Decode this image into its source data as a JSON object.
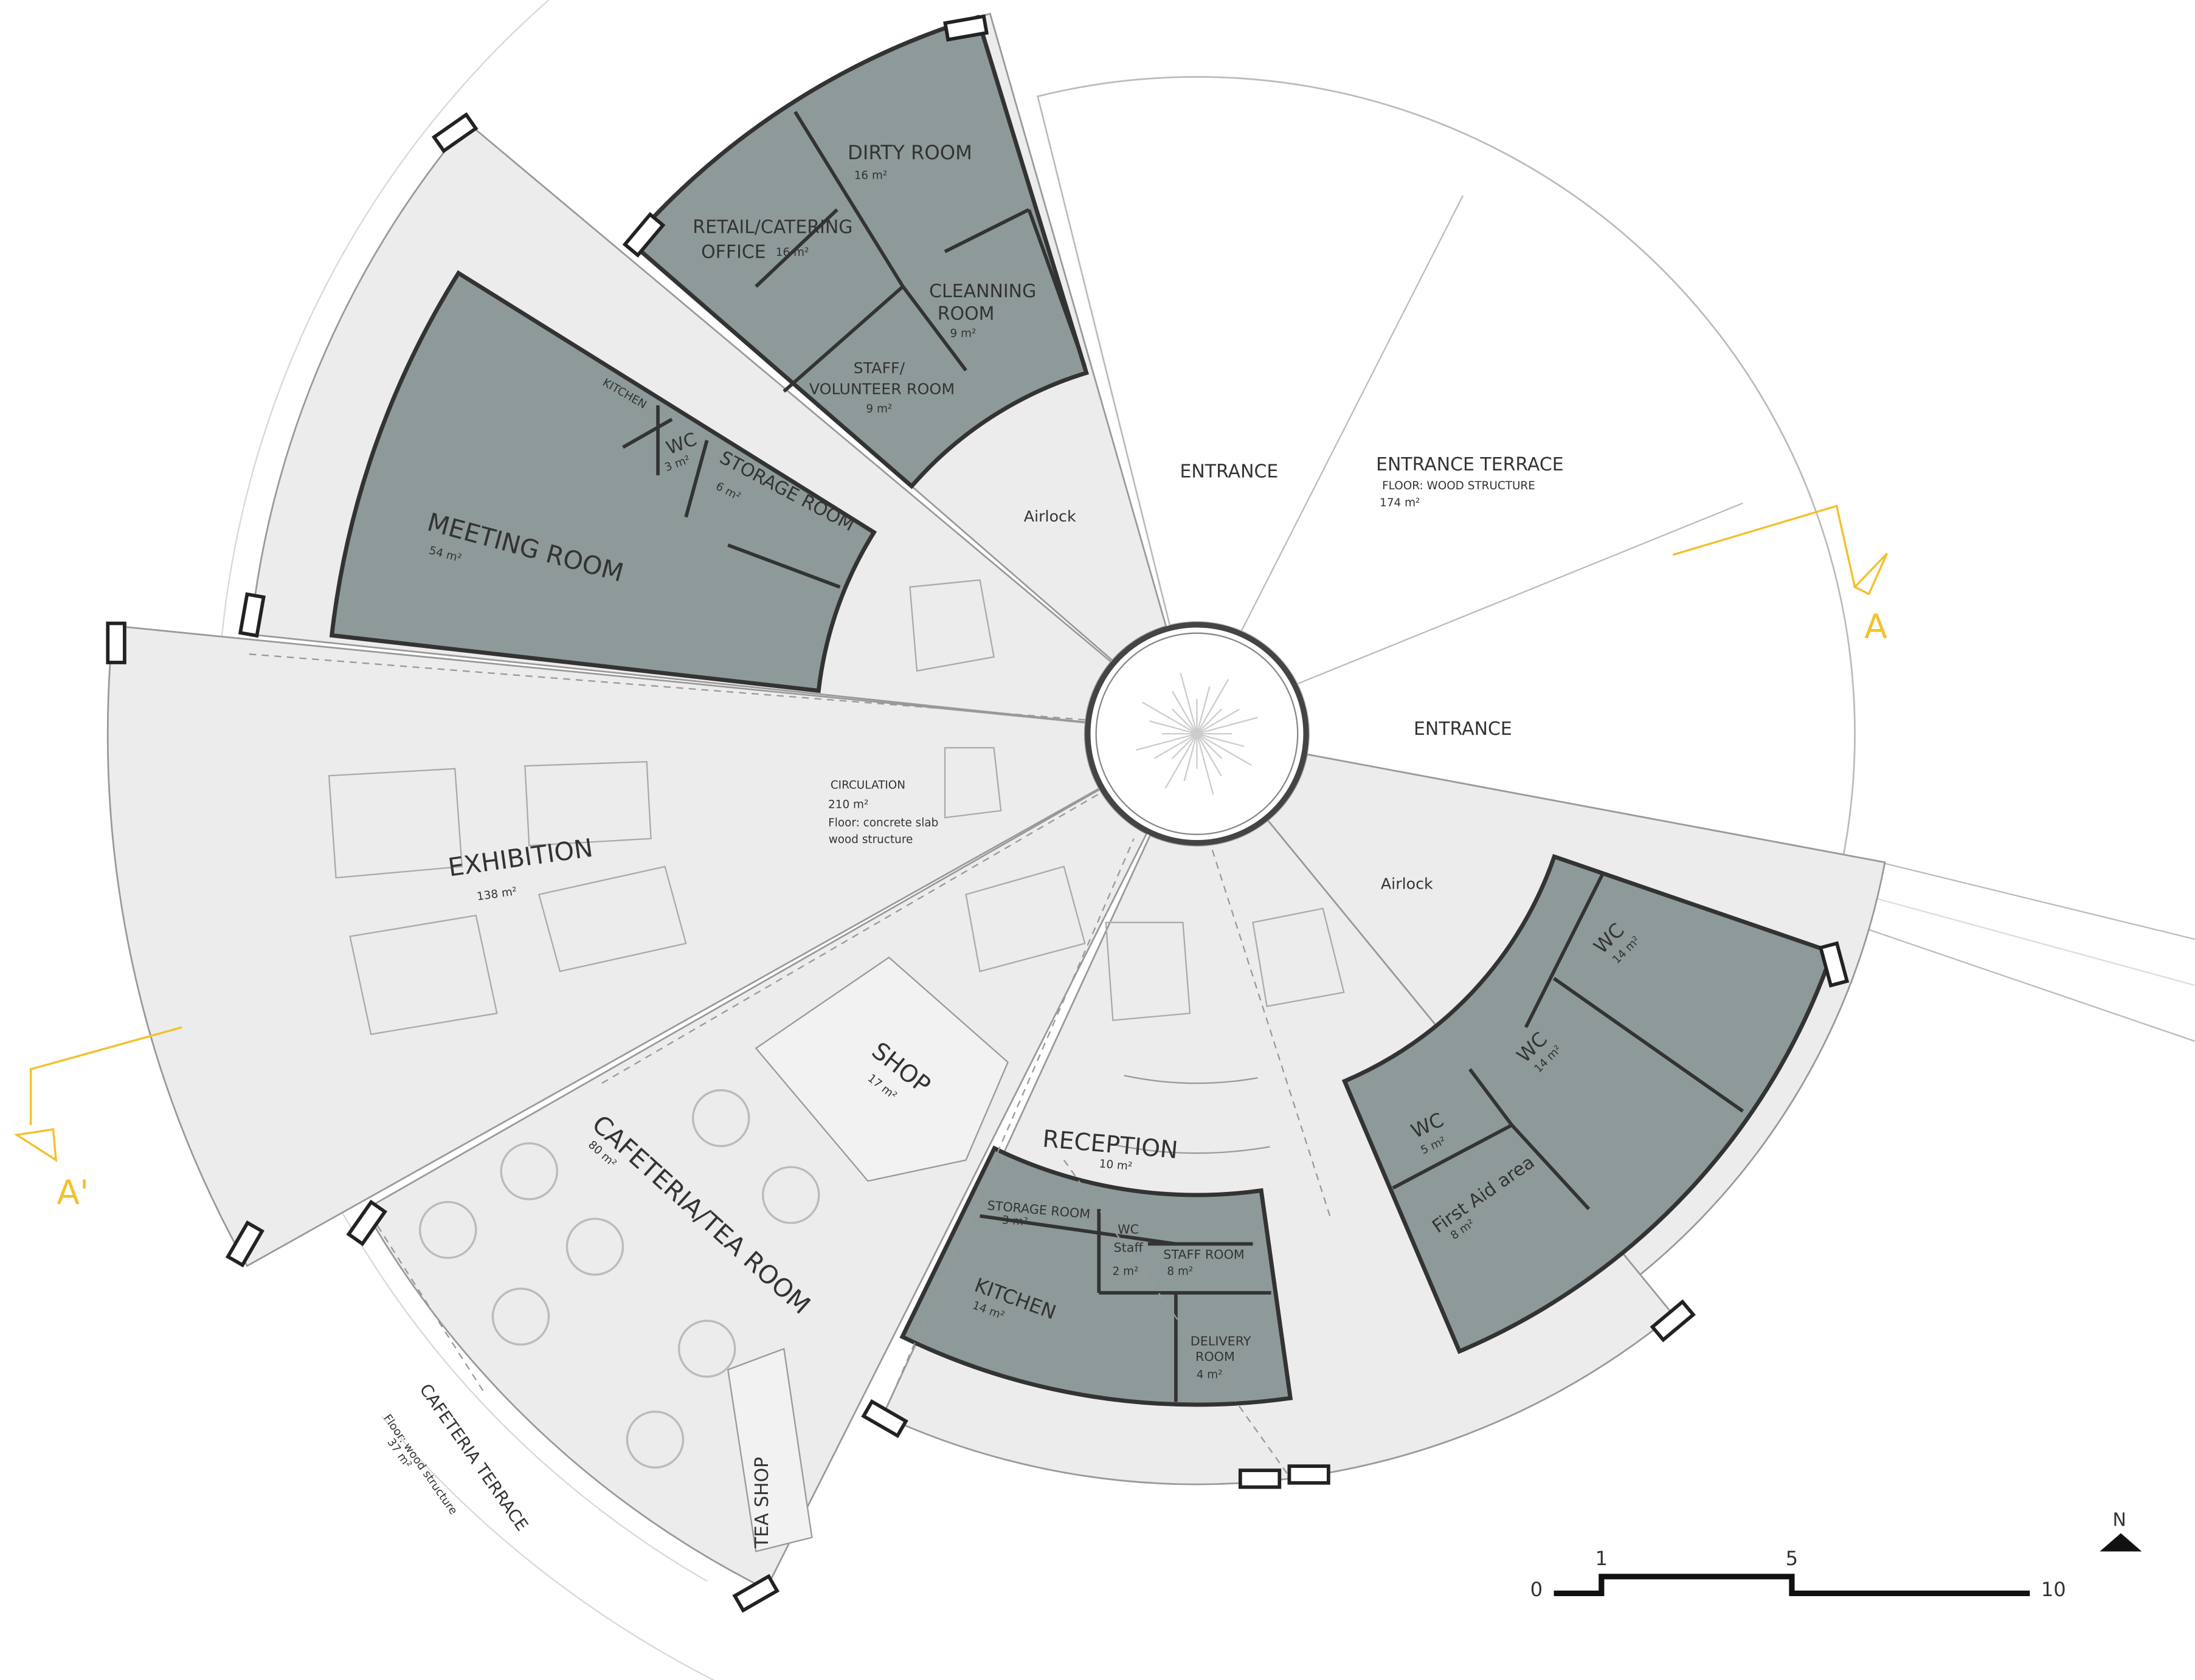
{
  "rooms": [
    {
      "name": "DIRTY ROOM",
      "area": "16 m²"
    },
    {
      "name": [
        "RETAIL/CATERING",
        "OFFICE"
      ],
      "area": "16 m²"
    },
    {
      "name": [
        "CLEANNING",
        "ROOM"
      ],
      "area": "9 m²"
    },
    {
      "name": [
        "STAFF/",
        "VOLUNTEER ROOM"
      ],
      "area": "9 m²"
    },
    {
      "name": "KITCHEN"
    },
    {
      "name": "WC",
      "area": "3 m²"
    },
    {
      "name": "STORAGE ROOM",
      "area": "6 m²"
    },
    {
      "name": "MEETING ROOM",
      "area": "54 m²"
    },
    {
      "name": "Airlock"
    },
    {
      "name": "ENTRANCE"
    },
    {
      "name": "ENTRANCE TERRACE",
      "floor": "FLOOR: WOOD STRUCTURE",
      "area": "174 m²"
    },
    {
      "name": "CIRCULATION",
      "area": "210 m²",
      "floor": [
        "Floor: concrete slab",
        "wood structure"
      ]
    },
    {
      "name": "EXHIBITION",
      "area": "138 m²"
    },
    {
      "name": "ENTRANCE"
    },
    {
      "name": "Airlock"
    },
    {
      "name": "SHOP",
      "area": "17 m²"
    },
    {
      "name": "RECEPTION",
      "area": "10 m²"
    },
    {
      "name": "CAFETERIA/TEA ROOM",
      "area": "80 m²"
    },
    {
      "name": "CAFETERIA TERRACE",
      "floor": "Floor: wood structure",
      "area": "37 m²"
    },
    {
      "name": "TEA SHOP"
    },
    {
      "name": "STORAGE ROOM",
      "area": "3 m²"
    },
    {
      "name": [
        "WC",
        "Staff"
      ],
      "area": "2 m²"
    },
    {
      "name": "STAFF ROOM",
      "area": "8 m²"
    },
    {
      "name": "KITCHEN",
      "area": "14 m²"
    },
    {
      "name": [
        "DELIVERY",
        "ROOM"
      ],
      "area": "4 m²"
    },
    {
      "name": "WC",
      "area": "14 m²"
    },
    {
      "name": "WC",
      "area": "14 m²"
    },
    {
      "name": "WC",
      "area": "5 m²"
    },
    {
      "name": "First Aid area",
      "area": "8 m²"
    }
  ],
  "sections": [
    {
      "label": "A"
    },
    {
      "label": "A'"
    }
  ],
  "scale_bar": {
    "ticks": [
      0,
      1,
      5,
      10
    ]
  },
  "north": "N"
}
